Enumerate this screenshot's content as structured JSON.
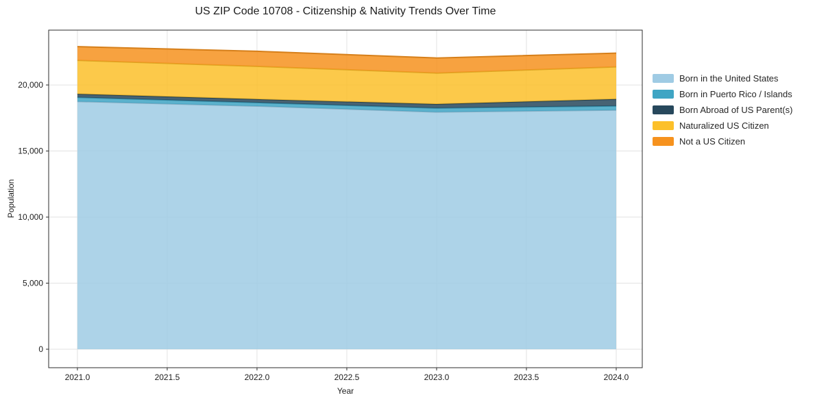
{
  "figure": {
    "background": "#ffffff"
  },
  "chart_data": {
    "type": "area",
    "stacked": true,
    "title": "US ZIP Code 10708 - Citizenship & Nativity Trends Over Time",
    "xlabel": "Year",
    "ylabel": "Population",
    "x": [
      2021,
      2022,
      2023,
      2024
    ],
    "series": [
      {
        "name": "Born in the United States",
        "color": "#9FCBE4",
        "values": [
          18750,
          18400,
          17950,
          18100
        ]
      },
      {
        "name": "Born in Puerto Rico / Islands",
        "color": "#3FA5C4",
        "values": [
          310,
          260,
          300,
          310
        ]
      },
      {
        "name": "Born Abroad of US Parent(s)",
        "color": "#27485C",
        "values": [
          260,
          260,
          300,
          520
        ]
      },
      {
        "name": "Naturalized US Citizen",
        "color": "#FCC02A",
        "values": [
          2540,
          2490,
          2350,
          2440
        ]
      },
      {
        "name": "Not a US Citizen",
        "color": "#F6921E",
        "values": [
          1040,
          1140,
          1140,
          1040
        ]
      }
    ],
    "totals": [
      22900,
      22550,
      22040,
      22410
    ],
    "x_ticks": [
      2021.0,
      2021.5,
      2022.0,
      2022.5,
      2023.0,
      2023.5,
      2024.0
    ],
    "x_tick_labels": [
      "2021.0",
      "2021.5",
      "2022.0",
      "2022.5",
      "2023.0",
      "2023.5",
      "2024.0"
    ],
    "y_ticks": [
      0,
      5000,
      10000,
      15000,
      20000
    ],
    "y_tick_labels": [
      "0",
      "5,000",
      "10,000",
      "15,000",
      "20,000"
    ],
    "xlim": [
      2020.84,
      2024.145
    ],
    "ylim": [
      -1400,
      24150
    ],
    "grid": true,
    "grid_color": "#e2e2e2",
    "spine_color": "#2b2b2b",
    "fill_opacity": 0.85,
    "legend_position": "right-outside"
  }
}
